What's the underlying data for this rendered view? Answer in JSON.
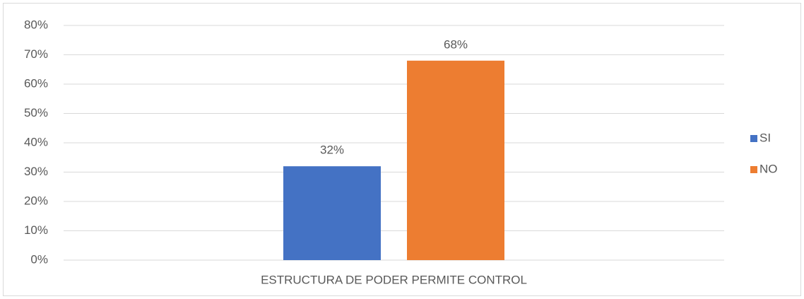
{
  "chart_data": {
    "type": "bar",
    "categories": [
      "ESTRUCTURA DE PODER PERMITE CONTROL"
    ],
    "series": [
      {
        "name": "SI",
        "color": "#4472c4",
        "values": [
          32
        ],
        "value_labels": [
          "32%"
        ]
      },
      {
        "name": "NO",
        "color": "#ed7d31",
        "values": [
          68
        ],
        "value_labels": [
          "68%"
        ]
      }
    ],
    "ylim": [
      0,
      80
    ],
    "yticks": [
      {
        "value": 0,
        "label": "0%"
      },
      {
        "value": 10,
        "label": "10%"
      },
      {
        "value": 20,
        "label": "20%"
      },
      {
        "value": 30,
        "label": "30%"
      },
      {
        "value": 40,
        "label": "40%"
      },
      {
        "value": 50,
        "label": "50%"
      },
      {
        "value": 60,
        "label": "60%"
      },
      {
        "value": 70,
        "label": "70%"
      },
      {
        "value": 80,
        "label": "80%"
      }
    ],
    "grid": true,
    "legend": "right"
  }
}
